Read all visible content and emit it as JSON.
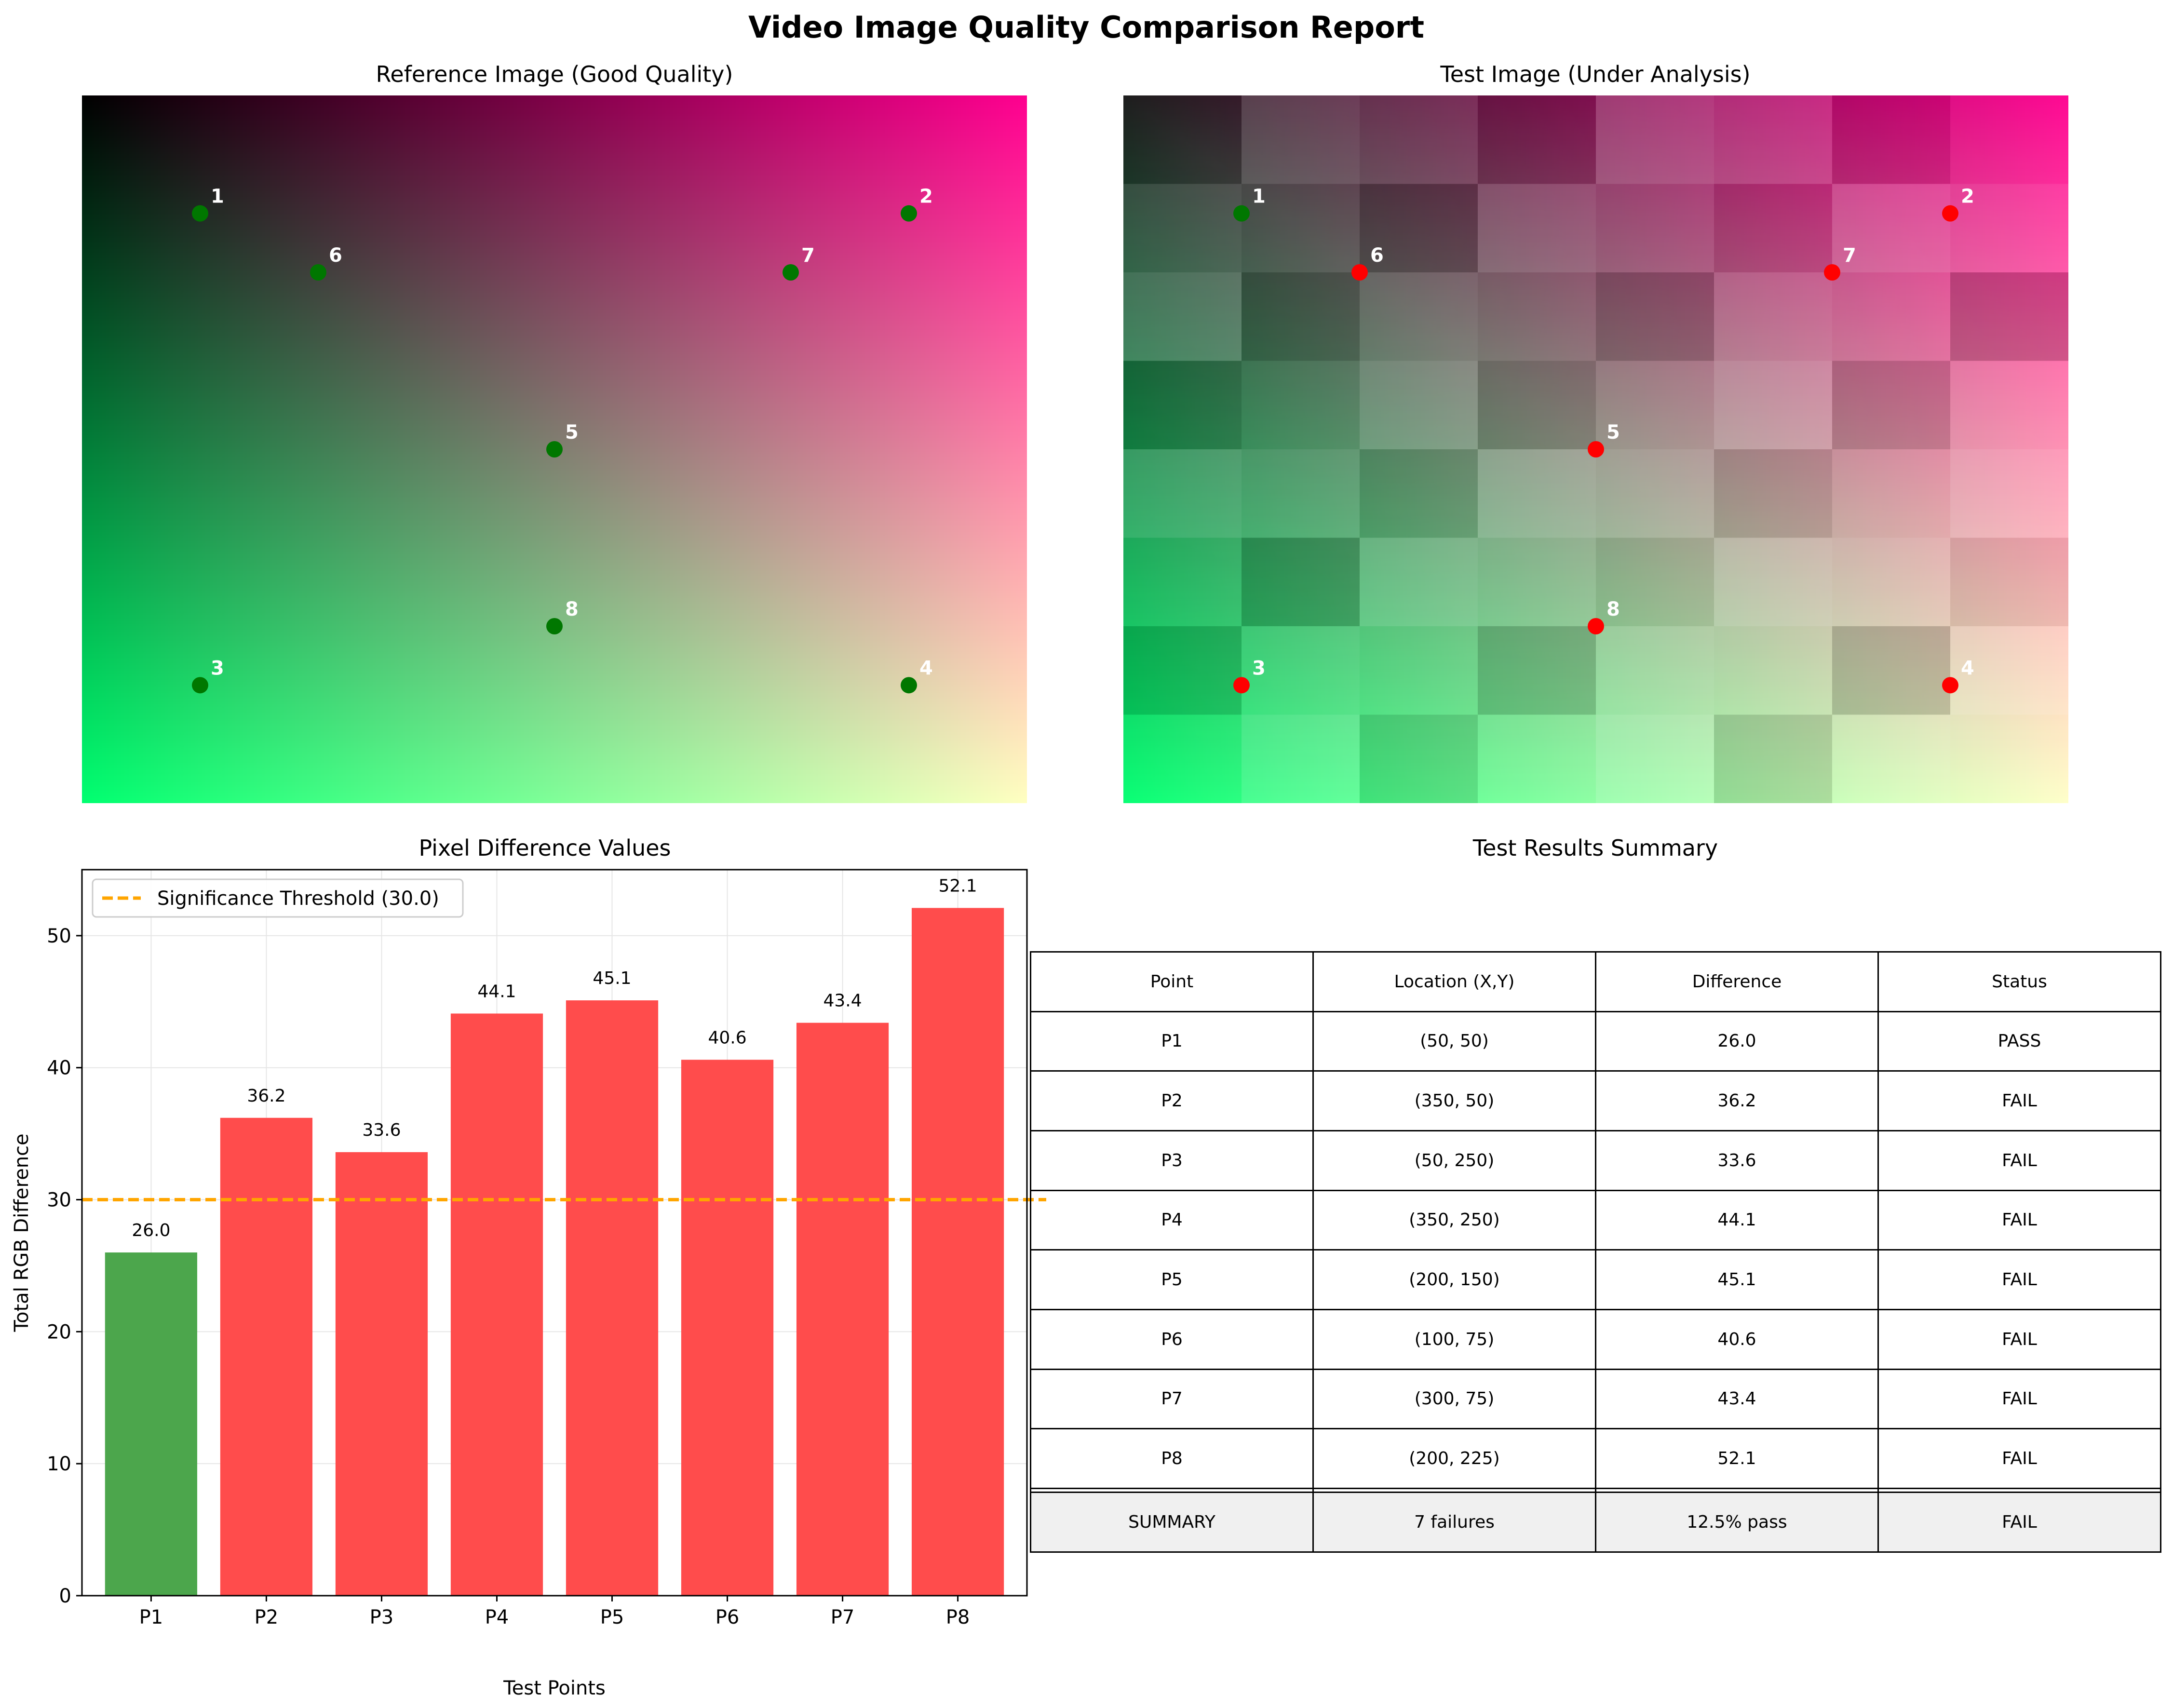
{
  "figure": {
    "title": "Video Image Quality Comparison Report"
  },
  "panels": {
    "reference": {
      "title": "Reference Image (Good Quality)"
    },
    "test": {
      "title": "Test Image (Under Analysis)"
    },
    "bars": {
      "title": "Pixel Difference Values"
    },
    "summary": {
      "title": "Test Results Summary"
    }
  },
  "colors": {
    "pass": "#4ca64c",
    "fail": "#ff4c4c",
    "threshold": "#ffa500",
    "marker_pass": "#007700",
    "marker_fail": "#ff0000"
  },
  "image_points": [
    {
      "label": "1",
      "x": 50,
      "y": 50,
      "status": "PASS"
    },
    {
      "label": "2",
      "x": 350,
      "y": 50,
      "status": "FAIL"
    },
    {
      "label": "3",
      "x": 50,
      "y": 250,
      "status": "FAIL"
    },
    {
      "label": "4",
      "x": 350,
      "y": 250,
      "status": "FAIL"
    },
    {
      "label": "5",
      "x": 200,
      "y": 150,
      "status": "FAIL"
    },
    {
      "label": "6",
      "x": 100,
      "y": 75,
      "status": "FAIL"
    },
    {
      "label": "7",
      "x": 300,
      "y": 75,
      "status": "FAIL"
    },
    {
      "label": "8",
      "x": 200,
      "y": 225,
      "status": "FAIL"
    }
  ],
  "chart_data": {
    "type": "bar",
    "title": "Pixel Difference Values",
    "xlabel": "Test Points",
    "ylabel": "Total RGB Difference",
    "categories": [
      "P1",
      "P2",
      "P3",
      "P4",
      "P5",
      "P6",
      "P7",
      "P8"
    ],
    "values": [
      26.0,
      36.2,
      33.6,
      44.1,
      45.1,
      40.6,
      43.4,
      52.1
    ],
    "value_labels": [
      "26.0",
      "36.2",
      "33.6",
      "44.1",
      "45.1",
      "40.6",
      "43.4",
      "52.1"
    ],
    "ylim": [
      0,
      55
    ],
    "yticks": [
      0,
      10,
      20,
      30,
      40,
      50
    ],
    "threshold": 30.0,
    "legend": {
      "label": "Significance Threshold (30.0)",
      "placement": "top-left"
    },
    "grid": true
  },
  "table": {
    "headers": [
      "Point",
      "Location (X,Y)",
      "Difference",
      "Status"
    ],
    "rows": [
      [
        "P1",
        "(50, 50)",
        "26.0",
        "PASS"
      ],
      [
        "P2",
        "(350, 50)",
        "36.2",
        "FAIL"
      ],
      [
        "P3",
        "(50, 250)",
        "33.6",
        "FAIL"
      ],
      [
        "P4",
        "(350, 250)",
        "44.1",
        "FAIL"
      ],
      [
        "P5",
        "(200, 150)",
        "45.1",
        "FAIL"
      ],
      [
        "P6",
        "(100, 75)",
        "40.6",
        "FAIL"
      ],
      [
        "P7",
        "(300, 75)",
        "43.4",
        "FAIL"
      ],
      [
        "P8",
        "(200, 225)",
        "52.1",
        "FAIL"
      ]
    ],
    "summary": [
      "SUMMARY",
      "7 failures",
      "12.5% pass",
      "FAIL"
    ]
  }
}
